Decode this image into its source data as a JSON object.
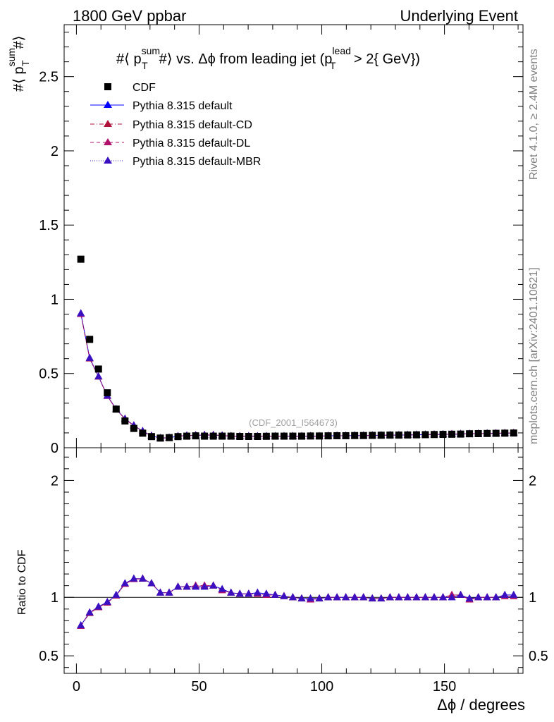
{
  "header": {
    "left": "1800 GeV ppbar",
    "right": "Underlying Event"
  },
  "side_labels": {
    "rivet": "Rivet 4.1.0, ≥ 2.4M events",
    "mcplots": "mcplots.cern.ch [arXiv:2401.10621]"
  },
  "chart_data": [
    {
      "type": "scatter",
      "title": {
        "main": "#⟨ p",
        "main_sup": "sum",
        "main_sub": "T",
        "main_rest": "#⟩ vs. Δϕ from leading jet  (p",
        "cut_sup": "lead",
        "cut_sub": "T",
        "cut_rest": " > 2{ GeV})"
      },
      "ylabel": {
        "prefix": "#⟨ p",
        "sup": "sum",
        "sub": "T",
        "suffix": "#⟩"
      },
      "watermark": "(CDF_2001_I564673)",
      "xlim": [
        -5,
        182
      ],
      "ylim": [
        0,
        2.85
      ],
      "x_ticks": [
        0,
        50,
        100,
        150
      ],
      "y_ticks": [
        {
          "value": 0,
          "label": "0"
        },
        {
          "value": 0.5,
          "label": "0.5"
        },
        {
          "value": 1,
          "label": "1"
        },
        {
          "value": 1.5,
          "label": "1.5"
        },
        {
          "value": 2,
          "label": "2"
        },
        {
          "value": 2.5,
          "label": "2.5"
        }
      ],
      "x": [
        1.8,
        5.4,
        9.0,
        12.6,
        16.2,
        19.8,
        23.4,
        27.0,
        30.6,
        34.2,
        37.8,
        41.4,
        45.0,
        48.6,
        52.2,
        55.8,
        59.4,
        63.0,
        66.6,
        70.2,
        73.8,
        77.4,
        81.0,
        84.6,
        88.2,
        91.8,
        95.4,
        99.0,
        102.6,
        106.2,
        109.8,
        113.4,
        117.0,
        120.6,
        124.2,
        127.8,
        131.4,
        135.0,
        138.6,
        142.2,
        145.8,
        149.4,
        153.0,
        156.6,
        160.2,
        163.8,
        167.4,
        171.0,
        174.6,
        178.2
      ],
      "legend": [
        {
          "label": "CDF",
          "color": "#000000",
          "marker": "square",
          "line": "none"
        },
        {
          "label": "Pythia 8.315 default",
          "color": "#0000ff",
          "marker": "triangle",
          "line": "solid"
        },
        {
          "label": "Pythia 8.315 default-CD",
          "color": "#b0103a",
          "marker": "triangle",
          "line": "dashdot"
        },
        {
          "label": "Pythia 8.315 default-DL",
          "color": "#b0106a",
          "marker": "triangle",
          "line": "dashed"
        },
        {
          "label": "Pythia 8.315 default-MBR",
          "color": "#3a10c0",
          "marker": "triangle",
          "line": "dotted"
        }
      ],
      "series": [
        {
          "name": "CDF",
          "values": [
            1.27,
            0.73,
            0.53,
            0.37,
            0.26,
            0.18,
            0.13,
            0.098,
            0.075,
            0.065,
            0.068,
            0.075,
            0.078,
            0.08,
            0.078,
            0.078,
            0.078,
            0.078,
            0.076,
            0.076,
            0.076,
            0.077,
            0.078,
            0.078,
            0.078,
            0.078,
            0.079,
            0.079,
            0.08,
            0.081,
            0.081,
            0.082,
            0.082,
            0.083,
            0.084,
            0.085,
            0.085,
            0.086,
            0.087,
            0.088,
            0.089,
            0.09,
            0.091,
            0.092,
            0.094,
            0.095,
            0.096,
            0.097,
            0.098,
            0.099
          ]
        },
        {
          "name": "Pythia 8.315 default",
          "values": [
            0.905,
            0.605,
            0.48,
            0.35,
            0.26,
            0.195,
            0.15,
            0.112,
            0.08,
            0.065,
            0.067,
            0.078,
            0.082,
            0.084,
            0.085,
            0.085,
            0.082,
            0.078,
            0.078,
            0.078,
            0.078,
            0.078,
            0.078,
            0.078,
            0.078,
            0.078,
            0.078,
            0.078,
            0.08,
            0.081,
            0.081,
            0.082,
            0.082,
            0.083,
            0.084,
            0.085,
            0.085,
            0.086,
            0.087,
            0.088,
            0.089,
            0.09,
            0.091,
            0.092,
            0.094,
            0.095,
            0.096,
            0.097,
            0.098,
            0.099
          ]
        },
        {
          "name": "Pythia 8.315 default-CD",
          "values": [
            0.9,
            0.6,
            0.478,
            0.348,
            0.258,
            0.194,
            0.149,
            0.111,
            0.08,
            0.065,
            0.067,
            0.078,
            0.082,
            0.084,
            0.086,
            0.086,
            0.082,
            0.078,
            0.078,
            0.078,
            0.078,
            0.078,
            0.078,
            0.078,
            0.078,
            0.078,
            0.078,
            0.078,
            0.08,
            0.081,
            0.081,
            0.082,
            0.082,
            0.083,
            0.084,
            0.085,
            0.085,
            0.086,
            0.087,
            0.088,
            0.089,
            0.09,
            0.092,
            0.093,
            0.094,
            0.095,
            0.096,
            0.097,
            0.099,
            0.1
          ]
        },
        {
          "name": "Pythia 8.315 default-DL",
          "values": [
            0.9,
            0.602,
            0.479,
            0.349,
            0.259,
            0.194,
            0.149,
            0.111,
            0.08,
            0.065,
            0.067,
            0.078,
            0.082,
            0.084,
            0.086,
            0.086,
            0.082,
            0.078,
            0.078,
            0.078,
            0.078,
            0.078,
            0.078,
            0.078,
            0.078,
            0.078,
            0.078,
            0.078,
            0.08,
            0.081,
            0.081,
            0.082,
            0.082,
            0.083,
            0.084,
            0.085,
            0.085,
            0.086,
            0.087,
            0.088,
            0.089,
            0.09,
            0.092,
            0.093,
            0.094,
            0.095,
            0.096,
            0.097,
            0.099,
            0.1
          ]
        },
        {
          "name": "Pythia 8.315 default-MBR",
          "values": [
            0.905,
            0.604,
            0.48,
            0.35,
            0.26,
            0.195,
            0.15,
            0.112,
            0.08,
            0.065,
            0.067,
            0.078,
            0.082,
            0.084,
            0.085,
            0.085,
            0.082,
            0.078,
            0.078,
            0.078,
            0.078,
            0.078,
            0.078,
            0.078,
            0.078,
            0.078,
            0.078,
            0.078,
            0.08,
            0.081,
            0.081,
            0.082,
            0.082,
            0.083,
            0.084,
            0.085,
            0.085,
            0.086,
            0.087,
            0.088,
            0.089,
            0.09,
            0.091,
            0.092,
            0.094,
            0.095,
            0.096,
            0.097,
            0.098,
            0.099
          ]
        }
      ]
    },
    {
      "type": "line",
      "ylabel": "Ratio to CDF",
      "xlabel": "Δϕ / degrees",
      "xlim": [
        -5,
        182
      ],
      "ylim": [
        0.35,
        2.28
      ],
      "reference_line": 1,
      "x_ticks": [
        {
          "value": 0,
          "label": "0"
        },
        {
          "value": 50,
          "label": "50"
        },
        {
          "value": 100,
          "label": "100"
        },
        {
          "value": 150,
          "label": "150"
        }
      ],
      "y_ticks": [
        {
          "value": 0.5,
          "label": "0.5"
        },
        {
          "value": 1,
          "label": "1"
        },
        {
          "value": 2,
          "label": "2"
        }
      ],
      "series": [
        {
          "name": "Pythia 8.315 default",
          "values": [
            0.76,
            0.87,
            0.92,
            0.96,
            1.02,
            1.12,
            1.16,
            1.16,
            1.12,
            1.04,
            1.04,
            1.09,
            1.09,
            1.09,
            1.09,
            1.1,
            1.07,
            1.04,
            1.03,
            1.03,
            1.04,
            1.03,
            1.02,
            1.01,
            1.0,
            0.99,
            0.99,
            0.99,
            1.0,
            1.0,
            1.0,
            1.0,
            1.0,
            0.99,
            0.99,
            1.0,
            1.0,
            1.0,
            1.0,
            1.0,
            1.0,
            1.0,
            1.0,
            1.02,
            0.99,
            1.0,
            1.0,
            1.0,
            1.02,
            1.02
          ]
        },
        {
          "name": "Pythia 8.315 default-CD",
          "values": [
            0.755,
            0.865,
            0.915,
            0.955,
            1.015,
            1.115,
            1.155,
            1.16,
            1.12,
            1.04,
            1.04,
            1.09,
            1.09,
            1.1,
            1.1,
            1.1,
            1.06,
            1.04,
            1.03,
            1.03,
            1.03,
            1.02,
            1.02,
            1.01,
            1.0,
            0.99,
            0.98,
            0.99,
            1.0,
            1.0,
            1.0,
            1.0,
            1.0,
            0.99,
            0.99,
            1.0,
            1.0,
            1.0,
            1.0,
            1.0,
            1.0,
            1.0,
            1.02,
            1.02,
            0.98,
            1.0,
            1.0,
            1.0,
            1.01,
            1.01
          ]
        },
        {
          "name": "Pythia 8.315 default-DL",
          "values": [
            0.755,
            0.87,
            0.915,
            0.955,
            1.015,
            1.115,
            1.155,
            1.16,
            1.12,
            1.04,
            1.04,
            1.09,
            1.09,
            1.1,
            1.1,
            1.1,
            1.06,
            1.04,
            1.03,
            1.03,
            1.03,
            1.02,
            1.02,
            1.01,
            1.0,
            0.99,
            0.98,
            0.99,
            1.0,
            1.0,
            1.0,
            1.0,
            1.0,
            0.99,
            0.99,
            1.0,
            1.0,
            1.0,
            1.0,
            1.0,
            1.0,
            1.0,
            1.02,
            1.02,
            0.98,
            1.0,
            1.0,
            1.0,
            1.01,
            1.01
          ]
        },
        {
          "name": "Pythia 8.315 default-MBR",
          "values": [
            0.76,
            0.87,
            0.92,
            0.96,
            1.02,
            1.12,
            1.16,
            1.16,
            1.12,
            1.04,
            1.04,
            1.09,
            1.09,
            1.09,
            1.09,
            1.1,
            1.07,
            1.04,
            1.03,
            1.03,
            1.04,
            1.03,
            1.02,
            1.01,
            1.0,
            0.99,
            0.99,
            0.99,
            1.0,
            1.0,
            1.0,
            1.0,
            1.0,
            0.99,
            0.99,
            1.0,
            1.0,
            1.0,
            1.0,
            1.0,
            1.0,
            1.0,
            1.0,
            1.02,
            0.99,
            1.0,
            1.0,
            1.0,
            1.02,
            1.02
          ]
        }
      ]
    }
  ]
}
